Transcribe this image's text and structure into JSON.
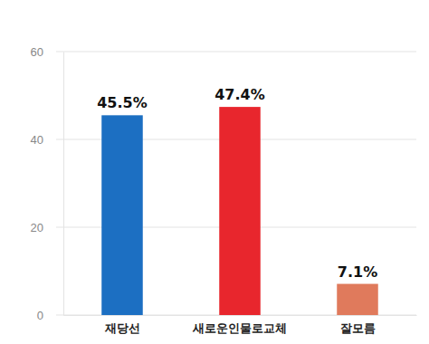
{
  "chart_data": {
    "type": "bar",
    "categories": [
      "재당선",
      "새로운인물로교체",
      "잘모름"
    ],
    "values": [
      45.5,
      47.4,
      7.1
    ],
    "value_labels": [
      "45.5%",
      "47.4%",
      "7.1%"
    ],
    "colors": [
      "#1c6fc2",
      "#e8262d",
      "#e07a5c"
    ],
    "ylim": [
      0,
      60
    ],
    "yticks": [
      0,
      20,
      40,
      60
    ],
    "grid": true,
    "data_labels": true
  }
}
